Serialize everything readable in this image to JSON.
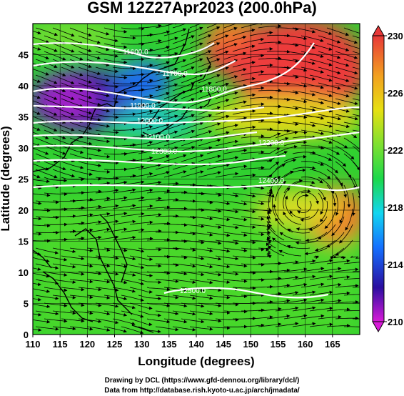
{
  "title": "GSM 12Z27Apr2023 (200.0hPa)",
  "credits": {
    "line1": "Drawing by DCL (https://www.gfd-dennou.org/library/dcl/)",
    "line2": "Data from http://database.rish.kyoto-u.ac.jp/arch/jmadata/"
  },
  "axes": {
    "xlabel": "Longitude (degrees)",
    "ylabel": "Latitude (degrees)",
    "xticks": [
      "110",
      "115",
      "120",
      "125",
      "130",
      "135",
      "140",
      "145",
      "150",
      "155",
      "160",
      "165"
    ],
    "yticks": [
      "0",
      "5",
      "10",
      "15",
      "20",
      "25",
      "30",
      "35",
      "40",
      "45"
    ],
    "xrange": [
      110,
      170
    ],
    "yrange": [
      0,
      50
    ]
  },
  "colorbar": {
    "labels": [
      "230",
      "226",
      "222",
      "218",
      "214",
      "210"
    ],
    "range": [
      210,
      230
    ],
    "colors": [
      "#d81bd8",
      "#2a0ea0",
      "#1470ff",
      "#12d6f0",
      "#1cd84a",
      "#7ee030",
      "#e6e012",
      "#f2a020",
      "#f06030",
      "#e83838"
    ]
  },
  "contours": [
    {
      "label": "11600.0",
      "color": "#ffffff"
    },
    {
      "label": "11700.0",
      "color": "#ffffff"
    },
    {
      "label": "11800.0",
      "color": "#ffffff"
    },
    {
      "label": "11900.0",
      "color": "#ffffff"
    },
    {
      "label": "12000.0",
      "color": "#ffffff"
    },
    {
      "label": "12100.0",
      "color": "#ffffff"
    },
    {
      "label": "12200.0",
      "color": "#ffffff"
    },
    {
      "label": "12300.0",
      "color": "#ffffff"
    },
    {
      "label": "12400.0",
      "color": "#ffffff"
    },
    {
      "label": "12500.0",
      "color": "#ffffff"
    }
  ]
}
